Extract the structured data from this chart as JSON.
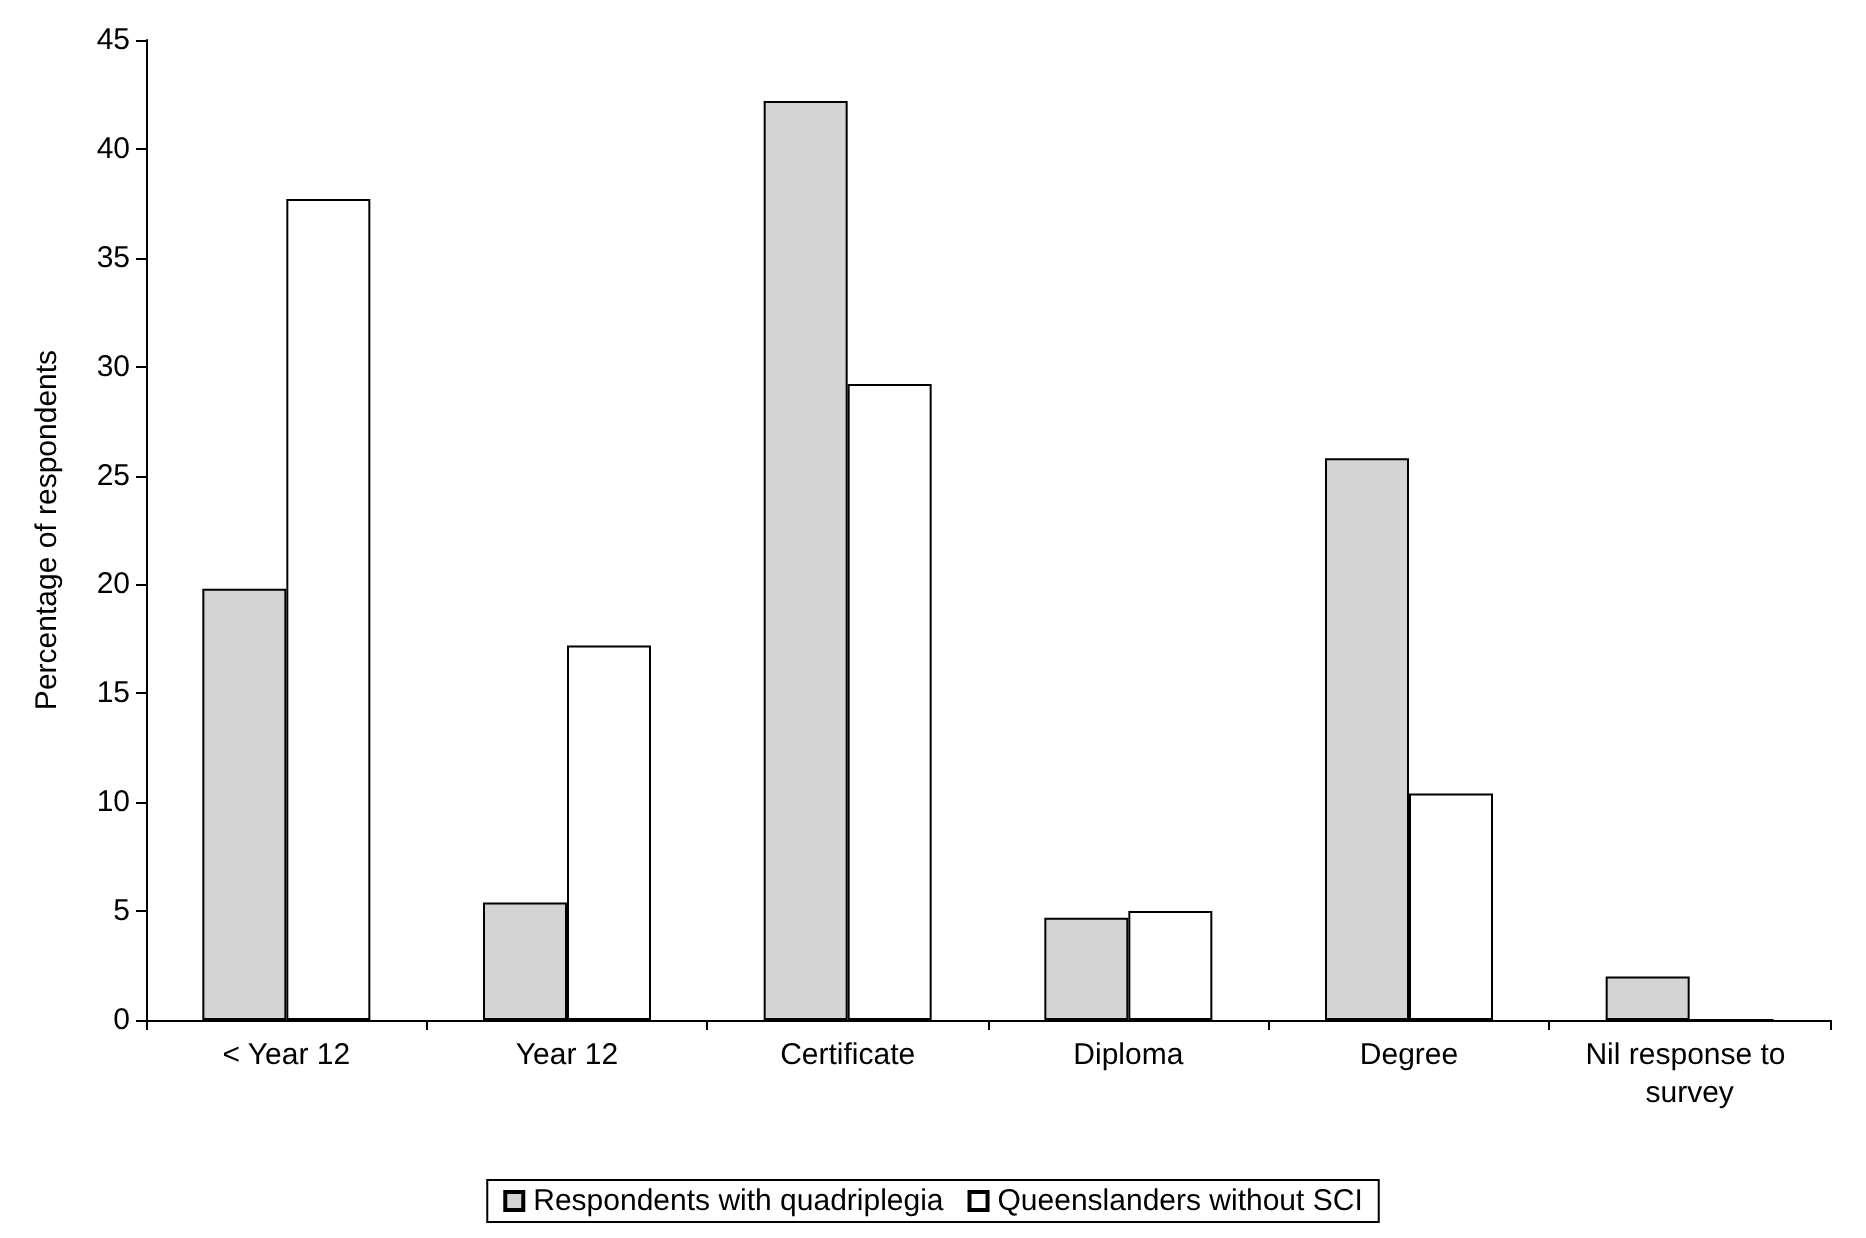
{
  "chart_data": {
    "type": "bar",
    "ylabel": "Percentage of respondents",
    "categories": [
      "< Year 12",
      "Year 12",
      "Certificate",
      "Diploma",
      "Degree",
      "Nil response to survey"
    ],
    "series": [
      {
        "name": "Respondents with quadriplegia",
        "color": "#d4d4d4",
        "values": [
          19.8,
          5.4,
          42.2,
          4.7,
          25.8,
          2.0
        ]
      },
      {
        "name": "Queenslanders without SCI",
        "color": "#ffffff",
        "values": [
          37.7,
          17.2,
          29.2,
          5.0,
          10.4,
          0
        ]
      }
    ],
    "ylim": [
      0,
      45
    ],
    "yticks": [
      0,
      5,
      10,
      15,
      20,
      25,
      30,
      35,
      40,
      45
    ],
    "grid": false,
    "legend": "bottom"
  }
}
